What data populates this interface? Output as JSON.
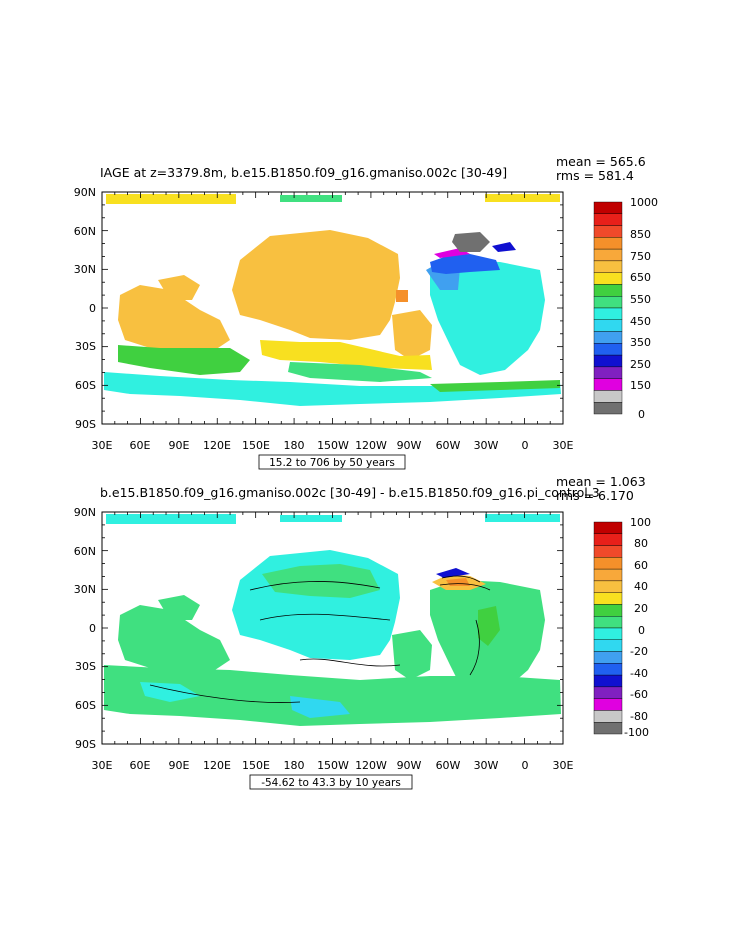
{
  "panels": [
    {
      "id": "iage",
      "title": "IAGE at z=3379.8m, b.e15.B1850.f09_g16.gmaniso.002c [30-49]",
      "stats": {
        "mean": "mean = 565.6",
        "rms": "rms = 581.4"
      },
      "range_text": "15.2 to 706 by 50 years",
      "lat_labels": [
        "90N",
        "60N",
        "30N",
        "0",
        "30S",
        "60S",
        "90S"
      ],
      "lon_labels": [
        "30E",
        "60E",
        "90E",
        "120E",
        "150E",
        "180",
        "150W",
        "120W",
        "90W",
        "60W",
        "30W",
        "0",
        "30E"
      ],
      "colorbar": {
        "colors": [
          "#c00000",
          "#e8201a",
          "#f04a2a",
          "#f5902a",
          "#f8a83a",
          "#f8c040",
          "#f8e020",
          "#40d040",
          "#40e080",
          "#30f0e0",
          "#30d8f0",
          "#40a0f0",
          "#2060f0",
          "#1010d0",
          "#8020c0",
          "#e000e0",
          "#c8c8c8",
          "#707070"
        ],
        "labels": [
          "1000",
          "850",
          "750",
          "650",
          "550",
          "450",
          "350",
          "250",
          "150",
          "0"
        ]
      },
      "regions": [
        {
          "name": "arctic-strip",
          "color": "#f8e020"
        },
        {
          "name": "pacific-basin",
          "color": "#f8c040"
        },
        {
          "name": "indian-basin",
          "color": "#f8c040"
        },
        {
          "name": "southern-band",
          "color": "#40e080"
        },
        {
          "name": "southern-ocean",
          "color": "#30f0e0"
        },
        {
          "name": "atlantic-basin",
          "color": "#30f0e0"
        },
        {
          "name": "nadw-source",
          "color": "#2060f0"
        }
      ]
    },
    {
      "id": "diff",
      "title": "b.e15.B1850.f09_g16.gmaniso.002c [30-49] - b.e15.B1850.f09_g16.pi_control.3",
      "stats": {
        "mean": "mean = 1.063",
        "rms": "rms = 6.170"
      },
      "range_text": "-54.62 to 43.3 by 10 years",
      "lat_labels": [
        "90N",
        "60N",
        "30N",
        "0",
        "30S",
        "60S",
        "90S"
      ],
      "lon_labels": [
        "30E",
        "60E",
        "90E",
        "120E",
        "150E",
        "180",
        "150W",
        "120W",
        "90W",
        "60W",
        "30W",
        "0",
        "30E"
      ],
      "colorbar": {
        "colors": [
          "#c00000",
          "#e8201a",
          "#f04a2a",
          "#f5902a",
          "#f8a83a",
          "#f8c040",
          "#f8e020",
          "#40d040",
          "#40e080",
          "#30f0e0",
          "#30d8f0",
          "#40a0f0",
          "#2060f0",
          "#1010d0",
          "#8020c0",
          "#e000e0",
          "#c8c8c8",
          "#707070"
        ],
        "labels": [
          "100",
          "80",
          "60",
          "40",
          "20",
          "0",
          "-20",
          "-40",
          "-60",
          "-80",
          "-100"
        ]
      },
      "regions": [
        {
          "name": "arctic-strip",
          "color": "#30f0e0"
        },
        {
          "name": "pacific-basin",
          "color": "#30f0e0"
        },
        {
          "name": "indian-basin",
          "color": "#40e080"
        },
        {
          "name": "southern-ocean",
          "color": "#40e080"
        },
        {
          "name": "atlantic-basin",
          "color": "#40e080"
        },
        {
          "name": "nadw-source",
          "color": "#f8c040"
        }
      ]
    }
  ]
}
